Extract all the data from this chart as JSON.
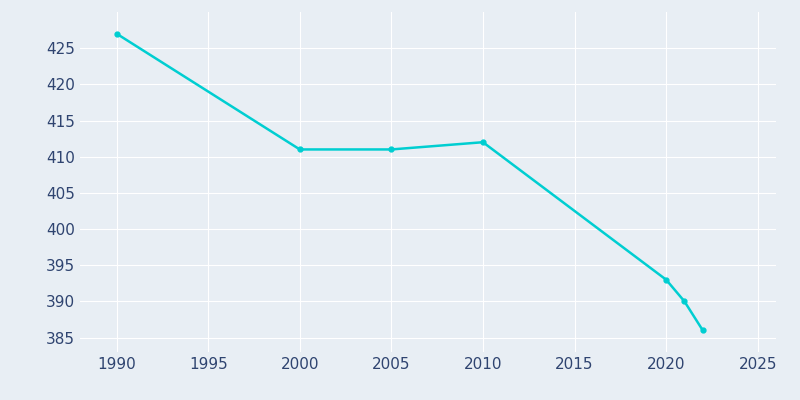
{
  "years": [
    1990,
    2000,
    2005,
    2010,
    2020,
    2021,
    2022
  ],
  "population": [
    427,
    411,
    411,
    412,
    393,
    390,
    386
  ],
  "line_color": "#00CED1",
  "marker_color": "#00CED1",
  "background_color": "#E8EEF4",
  "grid_color": "#ffffff",
  "tick_label_color": "#2F4470",
  "xlim": [
    1988,
    2026
  ],
  "ylim": [
    383,
    430
  ],
  "xticks": [
    1990,
    1995,
    2000,
    2005,
    2010,
    2015,
    2020,
    2025
  ],
  "yticks": [
    385,
    390,
    395,
    400,
    405,
    410,
    415,
    420,
    425
  ]
}
